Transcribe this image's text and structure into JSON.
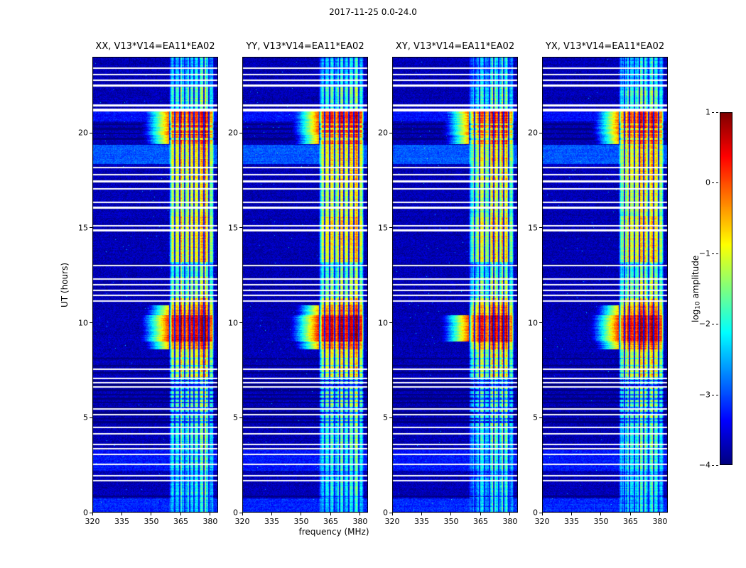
{
  "figure": {
    "suptitle": "2017-11-25 0.0-24.0"
  },
  "chart_data": {
    "type": "heatmap",
    "title": "2017-11-25 0.0-24.0",
    "colormap": "jet",
    "panels": [
      {
        "pol": "XX",
        "baseline": "V13*V14=EA11*EA02",
        "title": "XX, V13*V14=EA11*EA02"
      },
      {
        "pol": "YY",
        "baseline": "V13*V14=EA11*EA02",
        "title": "YY, V13*V14=EA11*EA02"
      },
      {
        "pol": "XY",
        "baseline": "V13*V14=EA11*EA02",
        "title": "XY, V13*V14=EA11*EA02"
      },
      {
        "pol": "YX",
        "baseline": "V13*V14=EA11*EA02",
        "title": "YX, V13*V14=EA11*EA02"
      }
    ],
    "x_axis": {
      "label": "frequency (MHz)",
      "range": [
        320,
        384
      ],
      "ticks": [
        320,
        335,
        350,
        365,
        380
      ],
      "tick_labels": [
        "320",
        "335",
        "350",
        "365",
        "380"
      ]
    },
    "y_axis": {
      "label": "UT (hours)",
      "range": [
        0,
        24
      ],
      "ticks": [
        0,
        5,
        10,
        15,
        20
      ],
      "tick_labels": [
        "0",
        "5",
        "10",
        "15",
        "20"
      ]
    },
    "colorbar": {
      "label_pre": "log",
      "label_sub": "10",
      "label_post": " amplitude",
      "label": "log10 amplitude",
      "range": [
        -4,
        1
      ],
      "ticks": [
        1,
        0,
        -1,
        -2,
        -3,
        -4
      ],
      "tick_labels": [
        "1",
        "0",
        "−1",
        "−2",
        "−3",
        "−4"
      ]
    },
    "content": {
      "background_level": -3.75,
      "noise_amplitude": 0.25,
      "rfi_band_mhz": [
        359,
        382
      ],
      "panel_level_adjust": [
        0,
        0.08,
        -0.12,
        -0.03
      ],
      "band_time_envelope": [
        [
          0.0,
          0.7,
          -2.4
        ],
        [
          0.7,
          1.9,
          -2.2
        ],
        [
          1.9,
          2.2,
          -2.6
        ],
        [
          2.2,
          3.3,
          -2.1
        ],
        [
          3.3,
          4.6,
          -1.9
        ],
        [
          4.6,
          5.6,
          -1.7
        ],
        [
          5.6,
          6.6,
          -1.6
        ],
        [
          6.6,
          7.15,
          -2.0
        ],
        [
          7.15,
          8.6,
          -1.1
        ],
        [
          8.6,
          9.0,
          -0.4
        ],
        [
          9.0,
          10.4,
          0.3
        ],
        [
          10.4,
          10.9,
          -0.4
        ],
        [
          10.9,
          11.3,
          -0.9
        ],
        [
          11.3,
          12.4,
          -1.5
        ],
        [
          12.4,
          13.2,
          -1.9
        ],
        [
          13.2,
          14.3,
          -1.0
        ],
        [
          14.3,
          15.6,
          -0.9
        ],
        [
          15.6,
          16.5,
          -1.3
        ],
        [
          16.5,
          17.4,
          -1.2
        ],
        [
          17.4,
          18.4,
          -1.0
        ],
        [
          18.4,
          19.4,
          -0.9
        ],
        [
          19.4,
          19.9,
          -0.3
        ],
        [
          19.9,
          21.15,
          0.0
        ],
        [
          21.15,
          21.6,
          -1.9
        ],
        [
          21.6,
          22.4,
          -1.8
        ],
        [
          22.4,
          23.3,
          -2.3
        ],
        [
          23.3,
          24.0,
          -2.4
        ]
      ],
      "gap_rows": [
        [
          1.7,
          2
        ],
        [
          1.95,
          2
        ],
        [
          2.55,
          2
        ],
        [
          3.05,
          2
        ],
        [
          3.35,
          2
        ],
        [
          3.6,
          2
        ],
        [
          4.15,
          2
        ],
        [
          4.5,
          2
        ],
        [
          5.15,
          2
        ],
        [
          5.45,
          2
        ],
        [
          6.6,
          2
        ],
        [
          6.85,
          2
        ],
        [
          7.05,
          2
        ],
        [
          7.55,
          2
        ],
        [
          11.15,
          2
        ],
        [
          11.45,
          2
        ],
        [
          11.7,
          2
        ],
        [
          12.0,
          2
        ],
        [
          12.3,
          2
        ],
        [
          13.0,
          2
        ],
        [
          14.85,
          3
        ],
        [
          15.1,
          2
        ],
        [
          16.05,
          3
        ],
        [
          16.35,
          2
        ],
        [
          17.05,
          2
        ],
        [
          17.45,
          3
        ],
        [
          17.8,
          2
        ],
        [
          18.15,
          2
        ],
        [
          21.2,
          4
        ],
        [
          21.45,
          3
        ],
        [
          22.5,
          3
        ],
        [
          22.75,
          2
        ],
        [
          23.05,
          2
        ],
        [
          23.4,
          2
        ]
      ],
      "dark_rows": [
        [
          0.85,
          2,
          -0.6
        ],
        [
          4.75,
          3,
          -1.2
        ],
        [
          4.95,
          2,
          -1.1
        ],
        [
          5.25,
          3,
          -1.3
        ],
        [
          5.55,
          2,
          -1.1
        ],
        [
          5.8,
          2,
          -1.2
        ],
        [
          6.0,
          3,
          -1.3
        ],
        [
          6.2,
          2,
          -1.1
        ],
        [
          6.45,
          3,
          -1.2
        ],
        [
          6.7,
          3,
          -1.4
        ],
        [
          6.95,
          2,
          -1.3
        ],
        [
          7.35,
          2,
          -0.8
        ],
        [
          7.75,
          2,
          -0.8
        ],
        [
          8.1,
          2,
          -0.7
        ],
        [
          13.05,
          2,
          -0.7
        ],
        [
          19.7,
          3,
          -0.9
        ],
        [
          19.95,
          2,
          -0.9
        ],
        [
          20.2,
          3,
          -0.9
        ],
        [
          20.45,
          2,
          -0.8
        ]
      ],
      "light_bg_periods": [
        [
          0.0,
          0.75,
          -3.2
        ],
        [
          2.2,
          3.3,
          -3.3
        ],
        [
          18.35,
          19.35,
          -2.95
        ],
        [
          20.6,
          21.15,
          -3.35
        ]
      ],
      "flagged_channels_mhz": [
        361.6,
        364.1,
        366.5,
        369.0,
        371.4,
        373.9,
        376.3,
        378.8
      ]
    }
  }
}
